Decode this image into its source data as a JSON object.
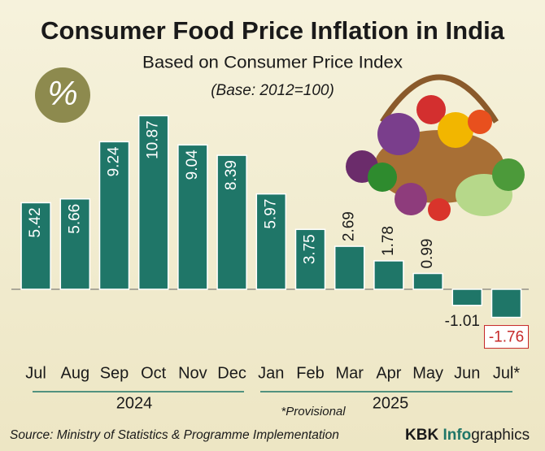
{
  "chart_data": {
    "type": "bar",
    "title": "Consumer Food Price Inflation in India",
    "subtitle": "Based on Consumer Price Index",
    "base_note": "(Base: 2012=100)",
    "icon": "%",
    "categories": [
      "Jul",
      "Aug",
      "Sep",
      "Oct",
      "Nov",
      "Dec",
      "Jan",
      "Feb",
      "Mar",
      "Apr",
      "May",
      "Jun",
      "Jul*"
    ],
    "values": [
      5.42,
      5.66,
      9.24,
      10.87,
      9.04,
      8.39,
      5.97,
      3.75,
      2.69,
      1.78,
      0.99,
      -1.01,
      -1.76
    ],
    "years": [
      "2024",
      "2025"
    ],
    "color": "#1f7668",
    "ylim": [
      -2.75,
      11.5
    ],
    "note": "*Provisional",
    "source": "Source: Ministry of Statistics & Programme Implementation",
    "brand": {
      "kbk": "KBK",
      "info": "Info",
      "graphics": "graphics"
    }
  }
}
